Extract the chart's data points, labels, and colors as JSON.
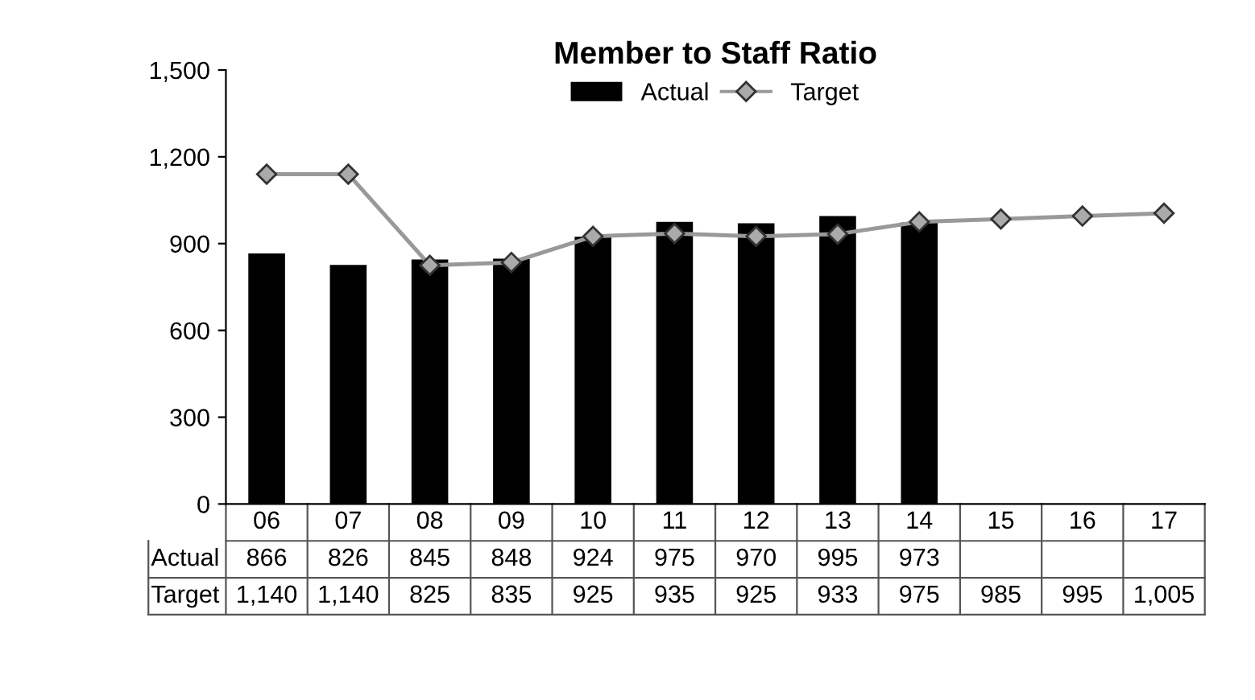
{
  "chart_data": {
    "type": "bar",
    "title": "Member to Staff Ratio",
    "categories": [
      "06",
      "07",
      "08",
      "09",
      "10",
      "11",
      "12",
      "13",
      "14",
      "15",
      "16",
      "17"
    ],
    "series": [
      {
        "name": "Actual",
        "color": "#000000",
        "values": [
          866,
          826,
          845,
          848,
          924,
          975,
          970,
          995,
          973,
          null,
          null,
          null
        ],
        "value_labels": [
          "866",
          "826",
          "845",
          "848",
          "924",
          "975",
          "970",
          "995",
          "973",
          null,
          null,
          null
        ]
      },
      {
        "name": "Target",
        "type": "line",
        "color": "#999999",
        "marker": "diamond",
        "values": [
          1140,
          1140,
          825,
          835,
          925,
          935,
          925,
          933,
          975,
          985,
          995,
          1005
        ],
        "value_labels": [
          "1,140",
          "1,140",
          "825",
          "835",
          "925",
          "935",
          "925",
          "933",
          "975",
          "985",
          "995",
          "1,005"
        ]
      }
    ],
    "ylim": [
      0,
      1500
    ],
    "yticks": [
      0,
      {
        "value": 300,
        "label": "300"
      },
      {
        "value": 600,
        "label": "600"
      },
      {
        "value": 900,
        "label": "900"
      },
      {
        "value": 1200,
        "label": "1,200"
      },
      {
        "value": 1500,
        "label": "1,500"
      }
    ],
    "grid": false,
    "legend": "top"
  }
}
